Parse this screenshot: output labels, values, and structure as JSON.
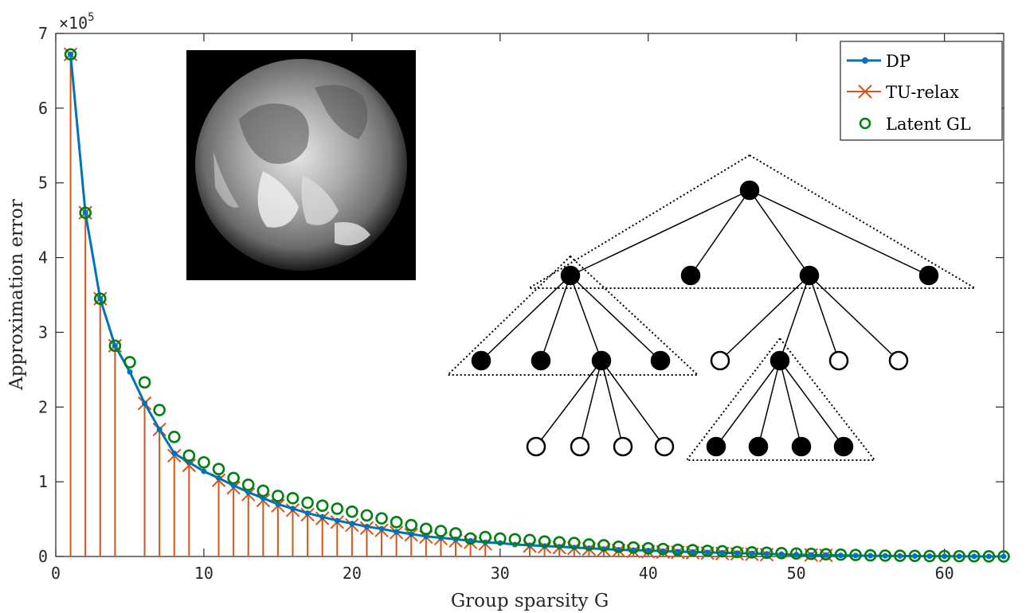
{
  "chart_data": {
    "type": "line",
    "xlabel": "Group sparsity G",
    "ylabel": "Approximation error",
    "xlim": [
      0,
      64
    ],
    "ylim": [
      0,
      7
    ],
    "y_multiplier_label": "×10",
    "y_multiplier_exp": "5",
    "x_ticks": [
      0,
      10,
      20,
      30,
      40,
      50,
      60
    ],
    "y_ticks": [
      0,
      1,
      2,
      3,
      4,
      5,
      6,
      7
    ],
    "legend_position": "top-right",
    "grid": false,
    "series": [
      {
        "name": "DP",
        "style": "line-dot",
        "color": "#0072BD",
        "points": [
          [
            1,
            6.72
          ],
          [
            2,
            4.6
          ],
          [
            3,
            3.45
          ],
          [
            4,
            2.82
          ],
          [
            5,
            2.47
          ],
          [
            6,
            2.05
          ],
          [
            7,
            1.7
          ],
          [
            8,
            1.38
          ],
          [
            9,
            1.26
          ],
          [
            10,
            1.14
          ],
          [
            11,
            1.05
          ],
          [
            12,
            0.95
          ],
          [
            13,
            0.86
          ],
          [
            14,
            0.78
          ],
          [
            15,
            0.7
          ],
          [
            16,
            0.64
          ],
          [
            17,
            0.58
          ],
          [
            18,
            0.53
          ],
          [
            19,
            0.48
          ],
          [
            20,
            0.44
          ],
          [
            21,
            0.4
          ],
          [
            22,
            0.37
          ],
          [
            23,
            0.33
          ],
          [
            24,
            0.3
          ],
          [
            25,
            0.27
          ],
          [
            26,
            0.25
          ],
          [
            27,
            0.23
          ],
          [
            28,
            0.21
          ],
          [
            29,
            0.19
          ],
          [
            30,
            0.18
          ],
          [
            31,
            0.16
          ],
          [
            32,
            0.15
          ],
          [
            33,
            0.14
          ],
          [
            34,
            0.13
          ],
          [
            35,
            0.12
          ],
          [
            36,
            0.11
          ],
          [
            37,
            0.1
          ],
          [
            38,
            0.09
          ],
          [
            39,
            0.085
          ],
          [
            40,
            0.08
          ],
          [
            41,
            0.07
          ],
          [
            42,
            0.065
          ],
          [
            43,
            0.06
          ],
          [
            44,
            0.055
          ],
          [
            45,
            0.05
          ],
          [
            46,
            0.045
          ],
          [
            47,
            0.04
          ],
          [
            48,
            0.035
          ],
          [
            49,
            0.03
          ],
          [
            50,
            0.025
          ],
          [
            51,
            0.02
          ],
          [
            52,
            0.018
          ],
          [
            53,
            0.015
          ],
          [
            54,
            0.012
          ],
          [
            55,
            0.01
          ],
          [
            56,
            0.008
          ],
          [
            57,
            0.006
          ],
          [
            58,
            0.005
          ],
          [
            59,
            0.004
          ],
          [
            60,
            0.003
          ],
          [
            61,
            0.002
          ],
          [
            62,
            0.001
          ],
          [
            63,
            0.0005
          ],
          [
            64,
            0
          ]
        ]
      },
      {
        "name": "TU-relax",
        "style": "stem-x",
        "color": "#D95319",
        "points": [
          [
            1,
            6.72
          ],
          [
            2,
            4.6
          ],
          [
            3,
            3.45
          ],
          [
            4,
            2.82
          ],
          [
            6,
            2.05
          ],
          [
            7,
            1.7
          ],
          [
            8,
            1.35
          ],
          [
            9,
            1.22
          ],
          [
            11,
            1.02
          ],
          [
            12,
            0.92
          ],
          [
            13,
            0.83
          ],
          [
            14,
            0.75
          ],
          [
            15,
            0.68
          ],
          [
            16,
            0.62
          ],
          [
            17,
            0.56
          ],
          [
            18,
            0.51
          ],
          [
            19,
            0.46
          ],
          [
            20,
            0.42
          ],
          [
            21,
            0.38
          ],
          [
            22,
            0.35
          ],
          [
            23,
            0.32
          ],
          [
            24,
            0.29
          ],
          [
            25,
            0.26
          ],
          [
            26,
            0.24
          ],
          [
            27,
            0.21
          ],
          [
            28,
            0.19
          ],
          [
            29,
            0.17
          ],
          [
            32,
            0.14
          ],
          [
            33,
            0.13
          ],
          [
            34,
            0.12
          ],
          [
            35,
            0.11
          ],
          [
            36,
            0.1
          ],
          [
            37,
            0.09
          ],
          [
            38,
            0.08
          ],
          [
            39,
            0.07
          ],
          [
            40,
            0.065
          ],
          [
            41,
            0.06
          ],
          [
            42,
            0.055
          ],
          [
            43,
            0.05
          ],
          [
            44,
            0.045
          ],
          [
            45,
            0.04
          ],
          [
            46,
            0.035
          ],
          [
            47,
            0.03
          ],
          [
            48,
            0.025
          ],
          [
            51,
            0.02
          ],
          [
            52,
            0.015
          ]
        ]
      },
      {
        "name": "Latent GL",
        "style": "circle",
        "color": "#00800F",
        "points": [
          [
            1,
            6.72
          ],
          [
            2,
            4.6
          ],
          [
            3,
            3.45
          ],
          [
            4,
            2.82
          ],
          [
            5,
            2.6
          ],
          [
            6,
            2.33
          ],
          [
            7,
            1.96
          ],
          [
            8,
            1.6
          ],
          [
            9,
            1.35
          ],
          [
            10,
            1.26
          ],
          [
            11,
            1.17
          ],
          [
            12,
            1.05
          ],
          [
            13,
            0.96
          ],
          [
            14,
            0.88
          ],
          [
            15,
            0.81
          ],
          [
            16,
            0.78
          ],
          [
            17,
            0.72
          ],
          [
            18,
            0.68
          ],
          [
            19,
            0.64
          ],
          [
            20,
            0.6
          ],
          [
            21,
            0.55
          ],
          [
            22,
            0.51
          ],
          [
            23,
            0.46
          ],
          [
            24,
            0.42
          ],
          [
            25,
            0.37
          ],
          [
            26,
            0.34
          ],
          [
            27,
            0.31
          ],
          [
            28,
            0.24
          ],
          [
            29,
            0.26
          ],
          [
            30,
            0.24
          ],
          [
            31,
            0.23
          ],
          [
            32,
            0.22
          ],
          [
            33,
            0.2
          ],
          [
            34,
            0.19
          ],
          [
            35,
            0.18
          ],
          [
            36,
            0.16
          ],
          [
            37,
            0.15
          ],
          [
            38,
            0.13
          ],
          [
            39,
            0.12
          ],
          [
            40,
            0.11
          ],
          [
            41,
            0.1
          ],
          [
            42,
            0.09
          ],
          [
            43,
            0.085
          ],
          [
            44,
            0.075
          ],
          [
            45,
            0.07
          ],
          [
            46,
            0.06
          ],
          [
            47,
            0.055
          ],
          [
            48,
            0.05
          ],
          [
            49,
            0.045
          ],
          [
            50,
            0.04
          ],
          [
            51,
            0.035
          ],
          [
            52,
            0.03
          ],
          [
            53,
            0.025
          ],
          [
            54,
            0.02
          ],
          [
            55,
            0.015
          ],
          [
            56,
            0.012
          ],
          [
            57,
            0.01
          ],
          [
            58,
            0.008
          ],
          [
            59,
            0.006
          ],
          [
            60,
            0.005
          ],
          [
            61,
            0.004
          ],
          [
            62,
            0.003
          ],
          [
            63,
            0.002
          ],
          [
            64,
            0.001
          ]
        ]
      }
    ]
  },
  "inset_diagram": {
    "type": "tree",
    "node_states": [
      "filled",
      "filled",
      "filled",
      "filled",
      "filled",
      "filled",
      "filled",
      "filled",
      "open",
      "filled",
      "open",
      "open",
      "open",
      "open",
      "open",
      "open",
      "filled",
      "filled",
      "filled",
      "filled"
    ]
  }
}
